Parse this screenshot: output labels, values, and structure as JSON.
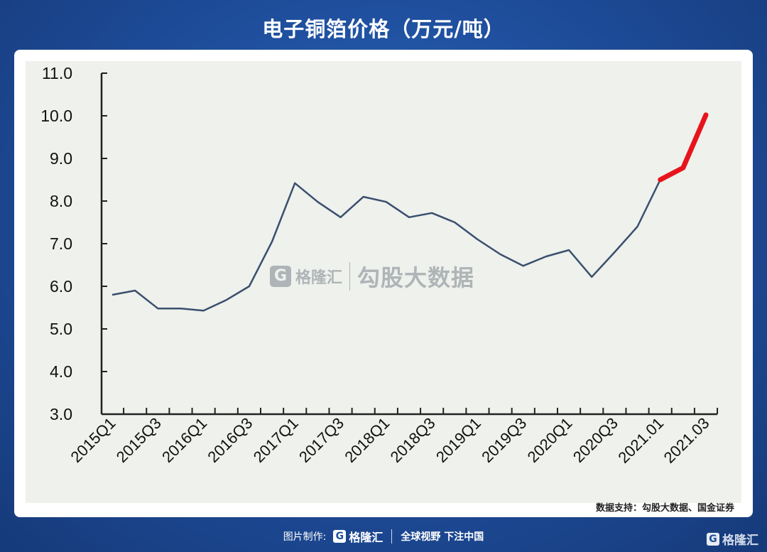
{
  "title": "电子铜箔价格（万元/吨）",
  "source": "数据支持：勾股大数据、国金证券",
  "footer": {
    "credit_label": "图片制作:",
    "brand": "格隆汇",
    "slogan": "全球视野 下注中国"
  },
  "watermark": {
    "brand": "格隆汇",
    "text": "勾股大数据"
  },
  "colors": {
    "line": "#3a4f6e",
    "highlight": "#e8141b",
    "axis": "#222222"
  },
  "chart_data": {
    "type": "line",
    "title": "电子铜箔价格（万元/吨）",
    "xlabel": "",
    "ylabel": "",
    "ylim": [
      3.0,
      11.0
    ],
    "yticks": [
      "3.0",
      "4.0",
      "5.0",
      "6.0",
      "7.0",
      "8.0",
      "9.0",
      "10.0",
      "11.0"
    ],
    "x": [
      "2015Q1",
      "2015Q2",
      "2015Q3",
      "2015Q4",
      "2016Q1",
      "2016Q2",
      "2016Q3",
      "2016Q4",
      "2017Q1",
      "2017Q2",
      "2017Q3",
      "2017Q4",
      "2018Q1",
      "2018Q2",
      "2018Q3",
      "2018Q4",
      "2019Q1",
      "2019Q2",
      "2019Q3",
      "2019Q4",
      "2020Q1",
      "2020Q2",
      "2020Q3",
      "2020Q4",
      "2021.01",
      "2021.02",
      "2021.03"
    ],
    "xtick_labels": [
      "2015Q1",
      "2015Q3",
      "2016Q1",
      "2016Q3",
      "2017Q1",
      "2017Q3",
      "2018Q1",
      "2018Q3",
      "2019Q1",
      "2019Q3",
      "2020Q1",
      "2020Q3",
      "2021.01",
      "2021.03"
    ],
    "series": [
      {
        "values": [
          5.8,
          5.9,
          5.48,
          5.48,
          5.43,
          5.68,
          6.0,
          7.05,
          8.42,
          7.98,
          7.62,
          8.1,
          7.98,
          7.62,
          7.72,
          7.5,
          7.1,
          6.75,
          6.48,
          6.7,
          6.85,
          6.22,
          6.8,
          7.4,
          8.5,
          8.78,
          10.02
        ],
        "highlight_from_index": 24
      }
    ],
    "grid": false,
    "legend": "none"
  }
}
